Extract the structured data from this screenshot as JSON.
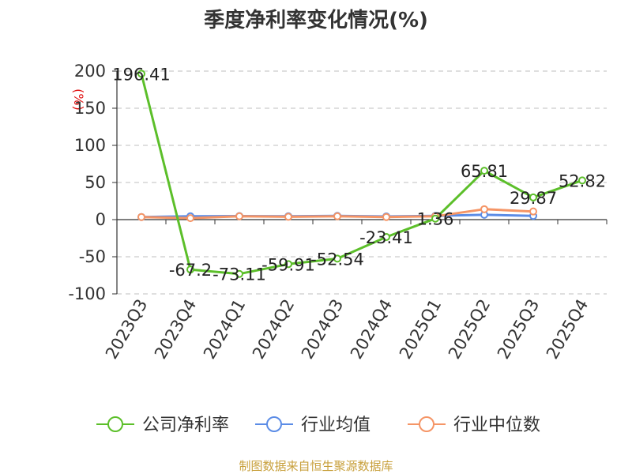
{
  "chart_data": {
    "type": "line",
    "title": "季度净利率变化情况(%)",
    "ylabel": "(%)",
    "ylim": [
      -100,
      200
    ],
    "yticks": [
      -100,
      -50,
      0,
      50,
      100,
      150,
      200
    ],
    "grid": true,
    "legend_position": "bottom",
    "categories": [
      "2023Q3",
      "2023Q4",
      "2024Q1",
      "2024Q2",
      "2024Q3",
      "2024Q4",
      "2025Q1",
      "2025Q2",
      "2025Q3",
      "2025Q4"
    ],
    "series": [
      {
        "name": "公司净利率",
        "color": "#5cbf2a",
        "values": [
          196.41,
          -67.2,
          -73.11,
          -59.91,
          -52.54,
          -23.41,
          1.36,
          65.81,
          29.87,
          52.82
        ],
        "labels": [
          "196.41",
          "-67.2",
          "-73.11",
          "-59.91",
          "-52.54",
          "-23.41",
          "1.36",
          "65.81",
          "29.87",
          "52.82"
        ]
      },
      {
        "name": "行业均值",
        "color": "#5b8ce6",
        "values": [
          3.5,
          4.5,
          4.8,
          4.5,
          5.0,
          4.3,
          5.0,
          6.5,
          5.0,
          null
        ]
      },
      {
        "name": "行业中位数",
        "color": "#f59566",
        "values": [
          3.5,
          2.0,
          4.5,
          3.8,
          4.5,
          3.5,
          4.5,
          14.0,
          11.0,
          null
        ]
      }
    ],
    "source": "制图数据来自恒生聚源数据库"
  }
}
